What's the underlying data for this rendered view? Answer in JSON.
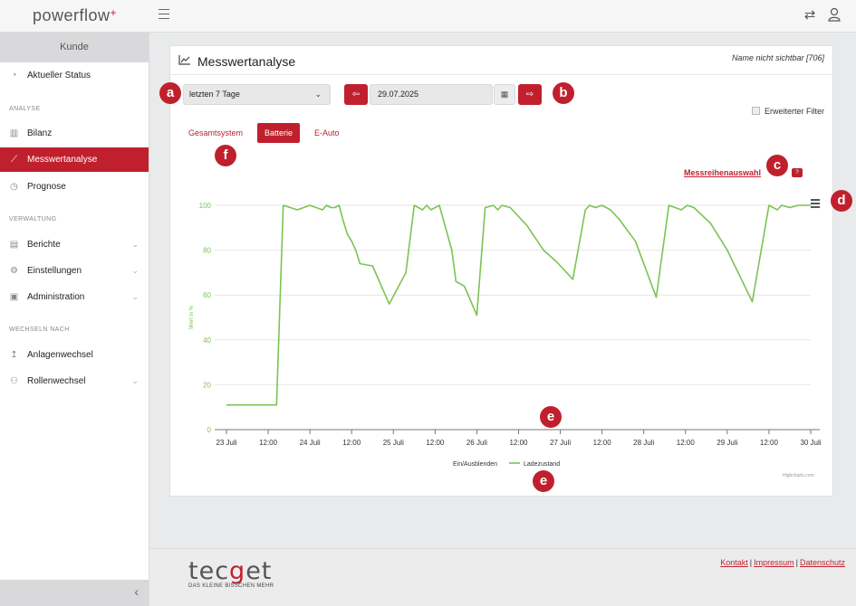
{
  "brand": {
    "name": "powerflow",
    "plus": "+"
  },
  "sidebar": {
    "customer": "Kunde",
    "sections": [
      "ANALYSE",
      "VERWALTUNG",
      "WECHSELN NACH"
    ],
    "items": [
      {
        "label": "Aktueller Status",
        "icon": "gauge-icon"
      },
      {
        "label": "Bilanz",
        "icon": "bar-chart-icon"
      },
      {
        "label": "Messwertanalyse",
        "icon": "line-chart-icon"
      },
      {
        "label": "Prognose",
        "icon": "clock-icon"
      },
      {
        "label": "Berichte",
        "icon": "document-icon"
      },
      {
        "label": "Einstellungen",
        "icon": "gear-icon"
      },
      {
        "label": "Administration",
        "icon": "terminal-icon"
      },
      {
        "label": "Anlagenwechsel",
        "icon": "arrow-up-icon"
      },
      {
        "label": "Rollenwechsel",
        "icon": "users-icon"
      }
    ]
  },
  "header": {
    "title": "Messwertanalyse",
    "subtitle": "Name nicht sichtbar [706]"
  },
  "controls": {
    "period": "letzten 7 Tage",
    "date": "29.07.2025",
    "filter_label": "Erweiterter Filter"
  },
  "tabs": [
    "Gesamtsystem",
    "Batterie",
    "E-Auto"
  ],
  "series_link": "Messreihenauswahl",
  "help": "?",
  "markers": [
    "a",
    "b",
    "c",
    "d",
    "e",
    "e",
    "f"
  ],
  "chart_data": {
    "type": "line",
    "ylabel": "Wert in %",
    "ylim": [
      0,
      100
    ],
    "yticks": [
      0,
      20,
      40,
      60,
      80,
      100
    ],
    "xlim": [
      "2025-07-23T00:00",
      "2025-07-30T00:00"
    ],
    "xticks": [
      "23 Juli",
      "12:00",
      "24 Juli",
      "12:00",
      "25 Juli",
      "12:00",
      "26 Juli",
      "12:00",
      "27 Juli",
      "12:00",
      "28 Juli",
      "12:00",
      "29 Juli",
      "12:00",
      "30 Juli"
    ],
    "legend_title": "Ein/Ausblenden",
    "credit": "Highcharts.com",
    "series": [
      {
        "name": "Ladezustand",
        "color": "#7cc354",
        "x": [
          0.0,
          0.6,
          0.68,
          0.85,
          1.0,
          1.15,
          1.2,
          1.25,
          1.3,
          1.35,
          1.4,
          1.45,
          1.5,
          1.55,
          1.6,
          1.75,
          1.95,
          2.15,
          2.25,
          2.35,
          2.4,
          2.45,
          2.55,
          2.7,
          2.75,
          2.85,
          3.0,
          3.1,
          3.2,
          3.25,
          3.3,
          3.4,
          3.6,
          3.8,
          3.95,
          4.15,
          4.3,
          4.35,
          4.42,
          4.5,
          4.6,
          4.7,
          4.9,
          5.15,
          5.3,
          5.45,
          5.52,
          5.6,
          5.8,
          6.0,
          6.3,
          6.5,
          6.6,
          6.65,
          6.75,
          6.85,
          7.0
        ],
        "y": [
          11,
          11,
          100,
          98,
          100,
          98,
          100,
          99,
          99,
          100,
          93,
          87,
          84,
          80,
          74,
          73,
          56,
          70,
          100,
          98,
          100,
          98,
          100,
          80,
          66,
          64,
          51,
          99,
          100,
          98,
          100,
          99,
          91,
          80,
          75,
          67,
          98,
          100,
          99,
          100,
          98,
          94,
          84,
          59,
          100,
          98,
          100,
          99,
          92,
          80,
          57,
          100,
          98,
          100,
          99,
          100,
          100
        ]
      }
    ]
  }
}
